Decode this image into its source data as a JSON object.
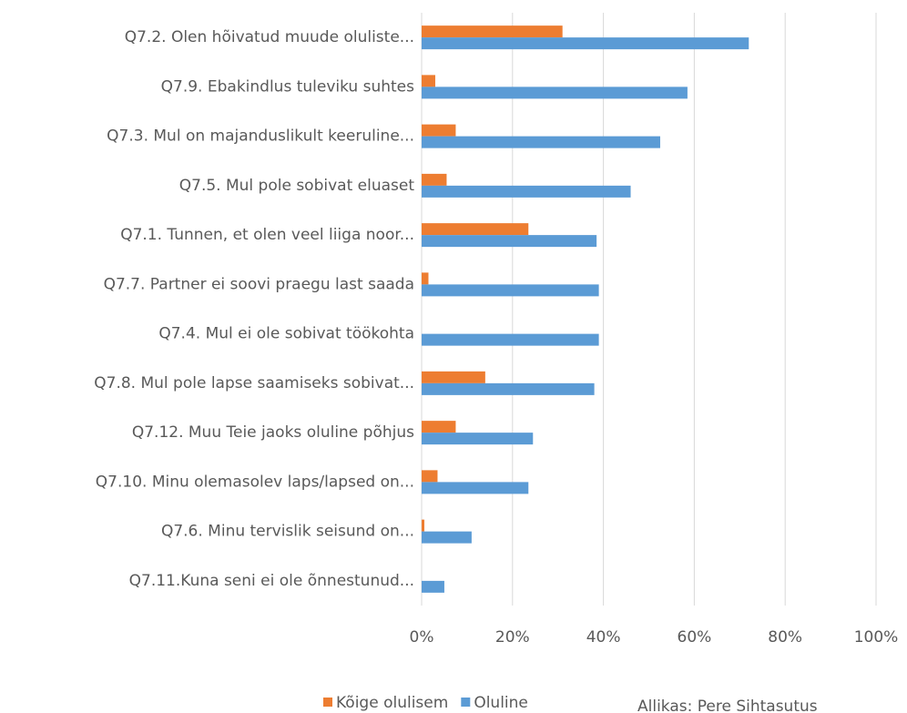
{
  "chart_data": {
    "type": "barh",
    "categories": [
      "Q7.2. Olen hõivatud muude oluliste...",
      "Q7.9. Ebakindlus tuleviku suhtes",
      "Q7.3. Mul on majanduslikult keeruline...",
      "Q7.5. Mul pole sobivat eluaset",
      "Q7.1. Tunnen, et olen veel liiga noor...",
      "Q7.7. Partner ei soovi praegu last saada",
      "Q7.4. Mul ei ole sobivat töökohta",
      "Q7.8. Mul pole lapse saamiseks sobivat...",
      "Q7.12. Muu Teie jaoks oluline põhjus",
      "Q7.10. Minu olemasolev laps/lapsed on...",
      "Q7.6. Minu tervislik seisund on...",
      "Q7.11.Kuna seni ei ole õnnestunud..."
    ],
    "series": [
      {
        "name": "Kõige olulisem",
        "color": "#ed7d31",
        "values": [
          31,
          3,
          7.5,
          5.5,
          23.5,
          1.5,
          0,
          14,
          7.5,
          3.5,
          0.6,
          0
        ]
      },
      {
        "name": "Oluline",
        "color": "#5b9bd5",
        "values": [
          72,
          58.5,
          52.5,
          46,
          38.5,
          39,
          39,
          38,
          24.5,
          23.5,
          11,
          5
        ]
      }
    ],
    "xlim": [
      0,
      100
    ],
    "xticks": [
      {
        "value": 0,
        "label": "0%"
      },
      {
        "value": 20,
        "label": "20%"
      },
      {
        "value": 40,
        "label": "40%"
      },
      {
        "value": 60,
        "label": "60%"
      },
      {
        "value": 80,
        "label": "80%"
      },
      {
        "value": 100,
        "label": "100%"
      }
    ],
    "grid": true,
    "legend": "bottom",
    "annotation": "Allikas: Pere Sihtasutus"
  }
}
